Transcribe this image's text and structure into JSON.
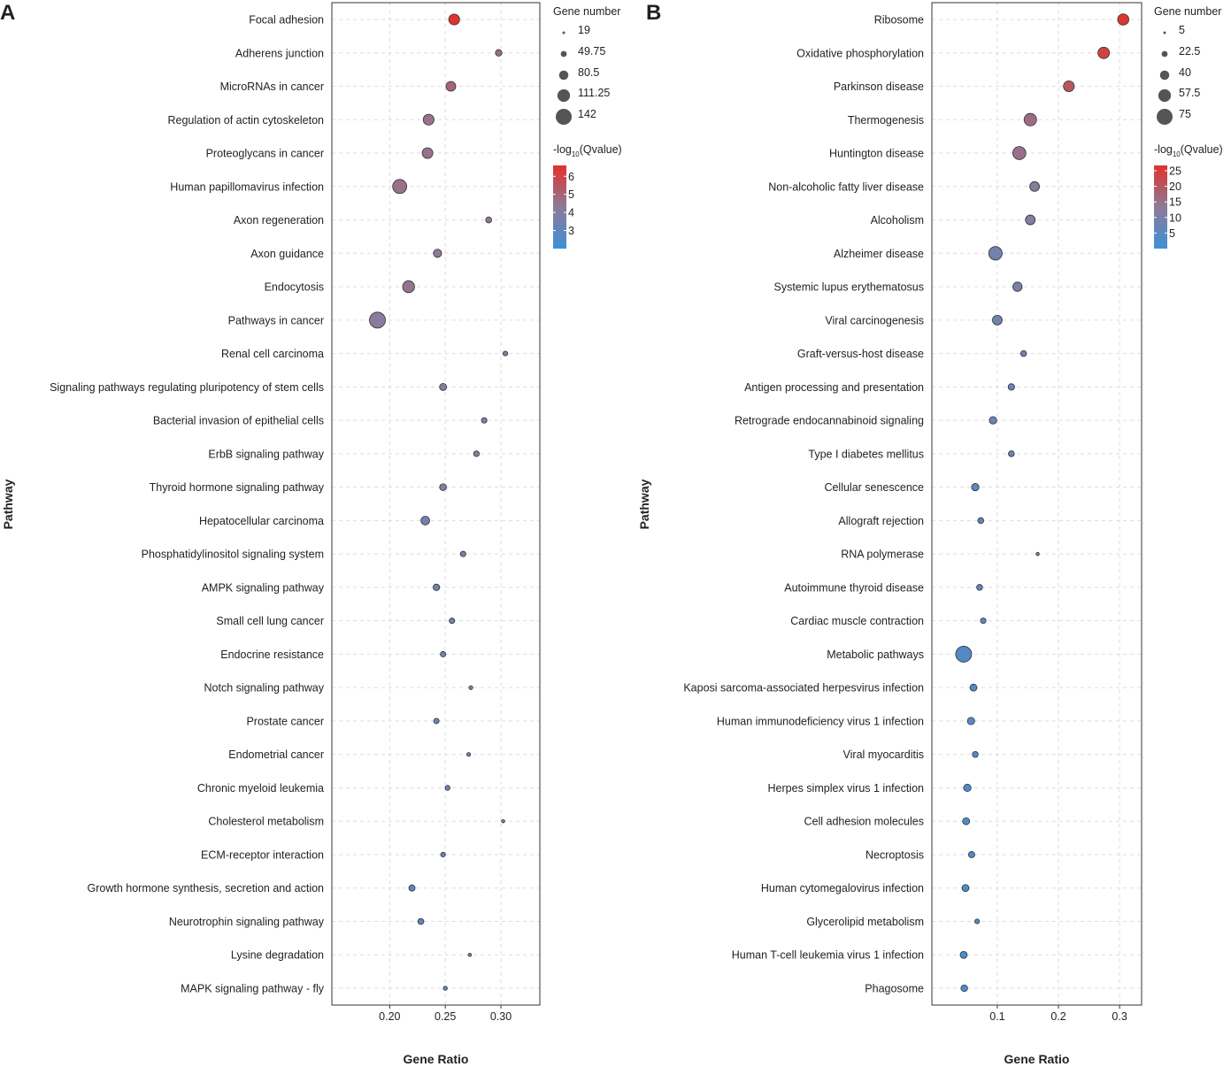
{
  "chart_data": [
    {
      "panel_letter": "A",
      "type": "scatter",
      "xlabel": "Gene Ratio",
      "ylabel": "Pathway",
      "xlim": [
        0.148,
        0.335
      ],
      "xticks": [
        0.2,
        0.25,
        0.3
      ],
      "xtick_labels": [
        "0.20",
        "0.25",
        "0.30"
      ],
      "grid": true,
      "size_legend": {
        "title": "Gene number",
        "values": [
          19,
          49.75,
          80.5,
          111.25,
          142
        ],
        "labels": [
          "19",
          "49.75",
          "80.5",
          "111.25",
          "142"
        ]
      },
      "color_legend": {
        "title_prefix": "-log",
        "title_sub": "10",
        "title_suffix": "(Qvalue)",
        "range": [
          2.0,
          6.6
        ],
        "ticks": [
          3,
          4,
          5,
          6
        ],
        "tick_labels": [
          "3",
          "4",
          "5",
          "6"
        ],
        "low_color": "#3d90d8",
        "mid_color": "#8d7a98",
        "high_color": "#e1322b"
      },
      "legend_position": "right",
      "points": [
        {
          "pathway": "Focal adhesion",
          "gene_ratio": 0.258,
          "gene_number": 95,
          "neg_log10_q": 6.5
        },
        {
          "pathway": "Adherens junction",
          "gene_ratio": 0.298,
          "gene_number": 55,
          "neg_log10_q": 4.7
        },
        {
          "pathway": "MicroRNAs in cancer",
          "gene_ratio": 0.255,
          "gene_number": 85,
          "neg_log10_q": 5.0
        },
        {
          "pathway": "Regulation of actin cytoskeleton",
          "gene_ratio": 0.235,
          "gene_number": 95,
          "neg_log10_q": 4.6
        },
        {
          "pathway": "Proteoglycans in cancer",
          "gene_ratio": 0.234,
          "gene_number": 93,
          "neg_log10_q": 4.6
        },
        {
          "pathway": "Human papillomavirus infection",
          "gene_ratio": 0.209,
          "gene_number": 125,
          "neg_log10_q": 4.6
        },
        {
          "pathway": "Axon regeneration",
          "gene_ratio": 0.289,
          "gene_number": 50,
          "neg_log10_q": 4.4
        },
        {
          "pathway": "Axon guidance",
          "gene_ratio": 0.243,
          "gene_number": 70,
          "neg_log10_q": 4.3
        },
        {
          "pathway": "Endocytosis",
          "gene_ratio": 0.217,
          "gene_number": 105,
          "neg_log10_q": 4.5
        },
        {
          "pathway": "Pathways in cancer",
          "gene_ratio": 0.189,
          "gene_number": 142,
          "neg_log10_q": 4.2
        },
        {
          "pathway": "Renal cell carcinoma",
          "gene_ratio": 0.304,
          "gene_number": 38,
          "neg_log10_q": 4.0
        },
        {
          "pathway": "Signaling pathways regulating pluripotency of stem cells",
          "gene_ratio": 0.248,
          "gene_number": 60,
          "neg_log10_q": 3.9
        },
        {
          "pathway": "Bacterial invasion of epithelial cells",
          "gene_ratio": 0.285,
          "gene_number": 45,
          "neg_log10_q": 3.9
        },
        {
          "pathway": "ErbB signaling pathway",
          "gene_ratio": 0.278,
          "gene_number": 47,
          "neg_log10_q": 3.9
        },
        {
          "pathway": "Thyroid hormone signaling pathway",
          "gene_ratio": 0.248,
          "gene_number": 58,
          "neg_log10_q": 3.8
        },
        {
          "pathway": "Hepatocellular carcinoma",
          "gene_ratio": 0.232,
          "gene_number": 75,
          "neg_log10_q": 3.6
        },
        {
          "pathway": "Phosphatidylinositol signaling system",
          "gene_ratio": 0.266,
          "gene_number": 45,
          "neg_log10_q": 3.7
        },
        {
          "pathway": "AMPK signaling pathway",
          "gene_ratio": 0.242,
          "gene_number": 55,
          "neg_log10_q": 3.5
        },
        {
          "pathway": "Small cell lung cancer",
          "gene_ratio": 0.256,
          "gene_number": 45,
          "neg_log10_q": 3.5
        },
        {
          "pathway": "Endocrine resistance",
          "gene_ratio": 0.248,
          "gene_number": 45,
          "neg_log10_q": 3.4
        },
        {
          "pathway": "Notch signaling pathway",
          "gene_ratio": 0.273,
          "gene_number": 30,
          "neg_log10_q": 3.5
        },
        {
          "pathway": "Prostate cancer",
          "gene_ratio": 0.242,
          "gene_number": 45,
          "neg_log10_q": 3.3
        },
        {
          "pathway": "Endometrial cancer",
          "gene_ratio": 0.271,
          "gene_number": 30,
          "neg_log10_q": 3.3
        },
        {
          "pathway": "Chronic myeloid leukemia",
          "gene_ratio": 0.252,
          "gene_number": 40,
          "neg_log10_q": 3.2
        },
        {
          "pathway": "Cholesterol metabolism",
          "gene_ratio": 0.302,
          "gene_number": 25,
          "neg_log10_q": 3.3
        },
        {
          "pathway": "ECM-receptor interaction",
          "gene_ratio": 0.248,
          "gene_number": 38,
          "neg_log10_q": 3.1
        },
        {
          "pathway": "Growth hormone synthesis, secretion and action",
          "gene_ratio": 0.22,
          "gene_number": 52,
          "neg_log10_q": 2.8
        },
        {
          "pathway": "Neurotrophin signaling pathway",
          "gene_ratio": 0.228,
          "gene_number": 50,
          "neg_log10_q": 2.8
        },
        {
          "pathway": "Lysine degradation",
          "gene_ratio": 0.272,
          "gene_number": 25,
          "neg_log10_q": 3.2
        },
        {
          "pathway": "MAPK signaling pathway - fly",
          "gene_ratio": 0.25,
          "gene_number": 32,
          "neg_log10_q": 3.0
        }
      ]
    },
    {
      "panel_letter": "B",
      "type": "scatter",
      "xlabel": "Gene Ratio",
      "ylabel": "Pathway",
      "xlim": [
        -0.007,
        0.336
      ],
      "xticks": [
        0.1,
        0.2,
        0.3
      ],
      "xtick_labels": [
        "0.1",
        "0.2",
        "0.3"
      ],
      "grid": true,
      "size_legend": {
        "title": "Gene number",
        "values": [
          5,
          22.5,
          40,
          57.5,
          75
        ],
        "labels": [
          "5",
          "22.5",
          "40",
          "57.5",
          "75"
        ]
      },
      "color_legend": {
        "title_prefix": "-log",
        "title_sub": "10",
        "title_suffix": "(Qvalue)",
        "range": [
          0,
          26.7
        ],
        "ticks": [
          5,
          10,
          15,
          20,
          25
        ],
        "tick_labels": [
          "5",
          "10",
          "15",
          "20",
          "25"
        ],
        "low_color": "#3d90d8",
        "mid_color": "#8d7a98",
        "high_color": "#e1322b"
      },
      "legend_position": "right",
      "points": [
        {
          "pathway": "Ribosome",
          "gene_ratio": 0.306,
          "gene_number": 50,
          "neg_log10_q": 26
        },
        {
          "pathway": "Oxidative phosphorylation",
          "gene_ratio": 0.274,
          "gene_number": 52,
          "neg_log10_q": 24
        },
        {
          "pathway": "Parkinson disease",
          "gene_ratio": 0.217,
          "gene_number": 48,
          "neg_log10_q": 20
        },
        {
          "pathway": "Thermogenesis",
          "gene_ratio": 0.154,
          "gene_number": 57,
          "neg_log10_q": 16
        },
        {
          "pathway": "Huntington disease",
          "gene_ratio": 0.136,
          "gene_number": 60,
          "neg_log10_q": 15
        },
        {
          "pathway": "Non-alcoholic fatty liver disease",
          "gene_ratio": 0.161,
          "gene_number": 42,
          "neg_log10_q": 12
        },
        {
          "pathway": "Alcoholism",
          "gene_ratio": 0.154,
          "gene_number": 42,
          "neg_log10_q": 11
        },
        {
          "pathway": "Alzheimer disease",
          "gene_ratio": 0.097,
          "gene_number": 62,
          "neg_log10_q": 9
        },
        {
          "pathway": "Systemic lupus erythematosus",
          "gene_ratio": 0.133,
          "gene_number": 40,
          "neg_log10_q": 10
        },
        {
          "pathway": "Viral carcinogenesis",
          "gene_ratio": 0.1,
          "gene_number": 42,
          "neg_log10_q": 8
        },
        {
          "pathway": "Graft-versus-host disease",
          "gene_ratio": 0.143,
          "gene_number": 22,
          "neg_log10_q": 9
        },
        {
          "pathway": "Antigen processing and presentation",
          "gene_ratio": 0.123,
          "gene_number": 25,
          "neg_log10_q": 8
        },
        {
          "pathway": "Retrograde endocannabinoid signaling",
          "gene_ratio": 0.093,
          "gene_number": 30,
          "neg_log10_q": 7
        },
        {
          "pathway": "Type I diabetes mellitus",
          "gene_ratio": 0.123,
          "gene_number": 22,
          "neg_log10_q": 7
        },
        {
          "pathway": "Cellular senescence",
          "gene_ratio": 0.064,
          "gene_number": 30,
          "neg_log10_q": 5
        },
        {
          "pathway": "Allograft rejection",
          "gene_ratio": 0.073,
          "gene_number": 22,
          "neg_log10_q": 6
        },
        {
          "pathway": "RNA polymerase",
          "gene_ratio": 0.166,
          "gene_number": 8,
          "neg_log10_q": 6
        },
        {
          "pathway": "Autoimmune thyroid disease",
          "gene_ratio": 0.071,
          "gene_number": 22,
          "neg_log10_q": 5
        },
        {
          "pathway": "Cardiac muscle contraction",
          "gene_ratio": 0.077,
          "gene_number": 20,
          "neg_log10_q": 5
        },
        {
          "pathway": "Metabolic pathways",
          "gene_ratio": 0.045,
          "gene_number": 75,
          "neg_log10_q": 4
        },
        {
          "pathway": "Kaposi sarcoma-associated herpesvirus infection",
          "gene_ratio": 0.061,
          "gene_number": 28,
          "neg_log10_q": 4
        },
        {
          "pathway": "Human immunodeficiency virus 1 infection",
          "gene_ratio": 0.057,
          "gene_number": 30,
          "neg_log10_q": 4
        },
        {
          "pathway": "Viral myocarditis",
          "gene_ratio": 0.064,
          "gene_number": 22,
          "neg_log10_q": 4
        },
        {
          "pathway": "Herpes simplex virus 1 infection",
          "gene_ratio": 0.051,
          "gene_number": 30,
          "neg_log10_q": 3
        },
        {
          "pathway": "Cell adhesion molecules",
          "gene_ratio": 0.049,
          "gene_number": 28,
          "neg_log10_q": 3
        },
        {
          "pathway": "Necroptosis",
          "gene_ratio": 0.058,
          "gene_number": 24,
          "neg_log10_q": 3
        },
        {
          "pathway": "Human cytomegalovirus infection",
          "gene_ratio": 0.048,
          "gene_number": 28,
          "neg_log10_q": 3
        },
        {
          "pathway": "Glycerolipid metabolism",
          "gene_ratio": 0.067,
          "gene_number": 16,
          "neg_log10_q": 3
        },
        {
          "pathway": "Human T-cell leukemia virus 1 infection",
          "gene_ratio": 0.045,
          "gene_number": 28,
          "neg_log10_q": 2
        },
        {
          "pathway": "Phagosome",
          "gene_ratio": 0.046,
          "gene_number": 26,
          "neg_log10_q": 2
        }
      ]
    }
  ]
}
